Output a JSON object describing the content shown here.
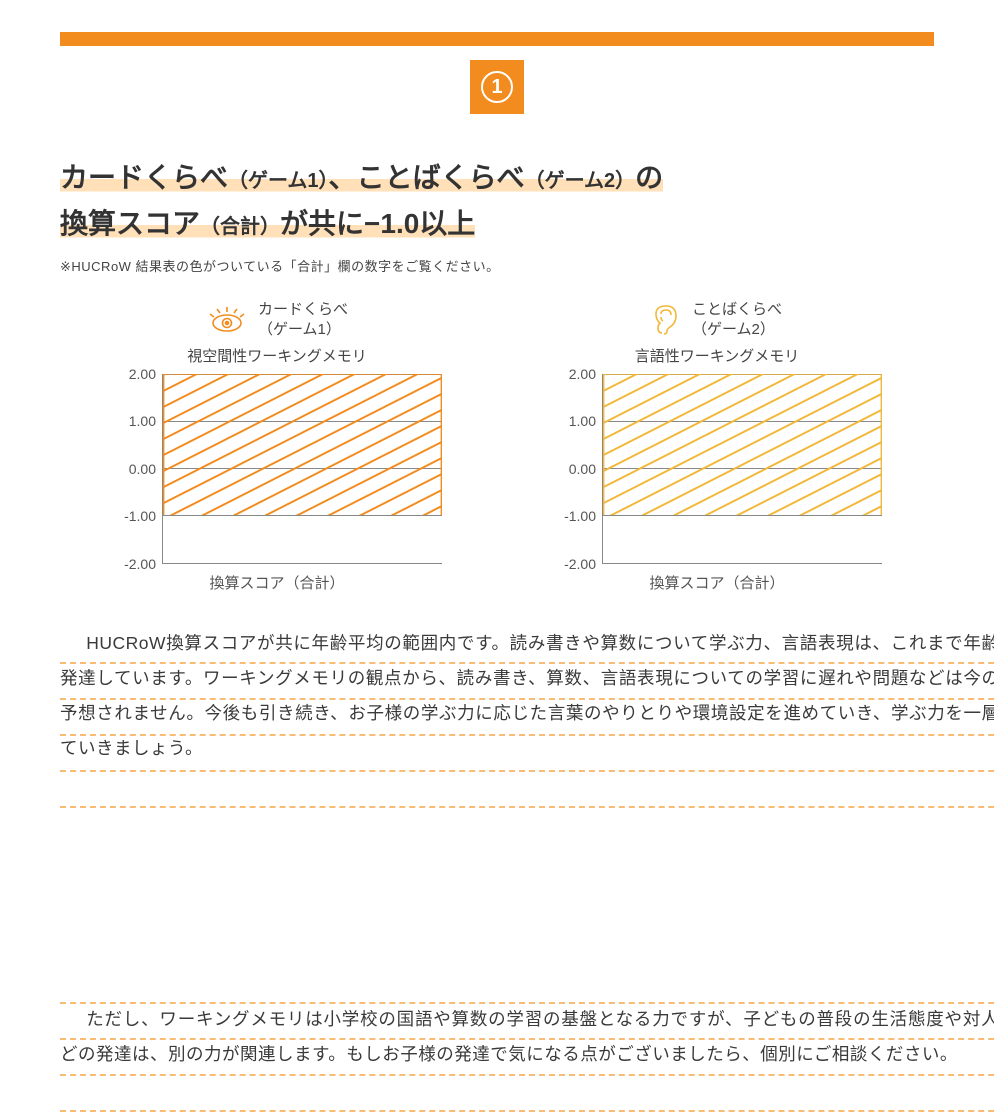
{
  "badge": {
    "number": "1"
  },
  "accent_color": "#f28c1e",
  "heading": {
    "part1_bold": "カードくらべ",
    "part1_small": "（ゲーム1）",
    "sep": "、",
    "part2_bold": "ことばくらべ",
    "part2_small": "（ゲーム2）",
    "tail1": "の",
    "line2a": "換算スコア",
    "line2_small": "（合計）",
    "line2b": "が共に−1.0以上"
  },
  "footnote": "※HUCRoW 結果表の色がついている「合計」欄の数字をご覧ください。",
  "chart1": {
    "icon": "eye",
    "icon_color": "#f28c1e",
    "title_l1": "カードくらべ",
    "title_l2": "（ゲーム1）",
    "subtitle": "視空間性ワーキングメモリ",
    "line_color": "#f28c1e",
    "type": "bar-band",
    "ylim": [
      -2.0,
      2.0
    ],
    "yticks": [
      "2.00",
      "1.00",
      "0.00",
      "-1.00",
      "-2.00"
    ],
    "band_from": -1.0,
    "band_to": 2.0,
    "xlabel": "換算スコア（合計）"
  },
  "chart2": {
    "icon": "ear",
    "icon_color": "#f2b83a",
    "title_l1": "ことばくらべ",
    "title_l2": "（ゲーム2）",
    "subtitle": "言語性ワーキングメモリ",
    "line_color": "#f2b83a",
    "type": "bar-band",
    "ylim": [
      -2.0,
      2.0
    ],
    "yticks": [
      "2.00",
      "1.00",
      "0.00",
      "-1.00",
      "-2.00"
    ],
    "band_from": -1.0,
    "band_to": 2.0,
    "xlabel": "換算スコア（合計）"
  },
  "paragraph1": "HUCRoW換算スコアが共に年齢平均の範囲内です。読み書きや算数について学ぶ力、言語表現は、これまで年齢相応に発達しています。ワーキングメモリの観点から、読み書き、算数、言語表現についての学習に遅れや問題などは今のところ予想されません。今後も引き続き、お子様の学ぶ力に応じた言葉のやりとりや環境設定を進めていき、学ぶ力を一層伸ばしていきましょう。",
  "paragraph2": "ただし、ワーキングメモリは小学校の国語や算数の学習の基盤となる力ですが、子どもの普段の生活態度や対人関係などの発達は、別の力が関連します。もしお子様の発達で気になる点がございましたら、個別にご相談ください。",
  "dash_color": "rgba(245,160,60,0.8)"
}
